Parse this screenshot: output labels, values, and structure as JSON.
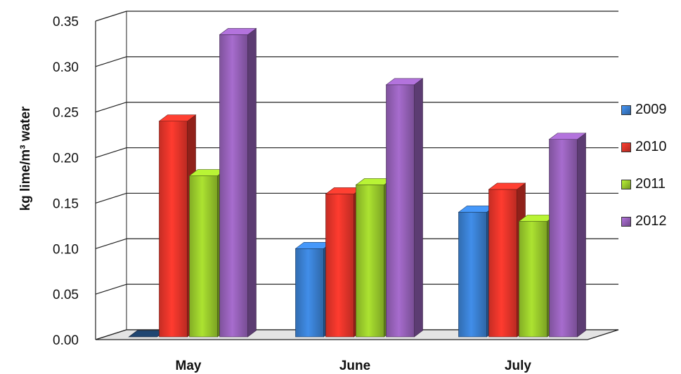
{
  "chart_data": {
    "type": "bar",
    "title": "",
    "xlabel": "",
    "ylabel": "kg lime/m³ water",
    "categories": [
      "May",
      "June",
      "July"
    ],
    "ylim": [
      0,
      0.35
    ],
    "yticks": [
      "0.00",
      "0.05",
      "0.10",
      "0.15",
      "0.20",
      "0.25",
      "0.30",
      "0.35"
    ],
    "grid": true,
    "legend_position": "right",
    "series": [
      {
        "name": "2009",
        "color": "#3a7fd0",
        "values": [
          0.0,
          0.1,
          0.14
        ]
      },
      {
        "name": "2010",
        "color": "#e8352a",
        "values": [
          0.24,
          0.16,
          0.165
        ]
      },
      {
        "name": "2011",
        "color": "#9acb2c",
        "values": [
          0.18,
          0.17,
          0.13
        ]
      },
      {
        "name": "2012",
        "color": "#9560b8",
        "values": [
          0.335,
          0.28,
          0.22
        ]
      }
    ]
  }
}
